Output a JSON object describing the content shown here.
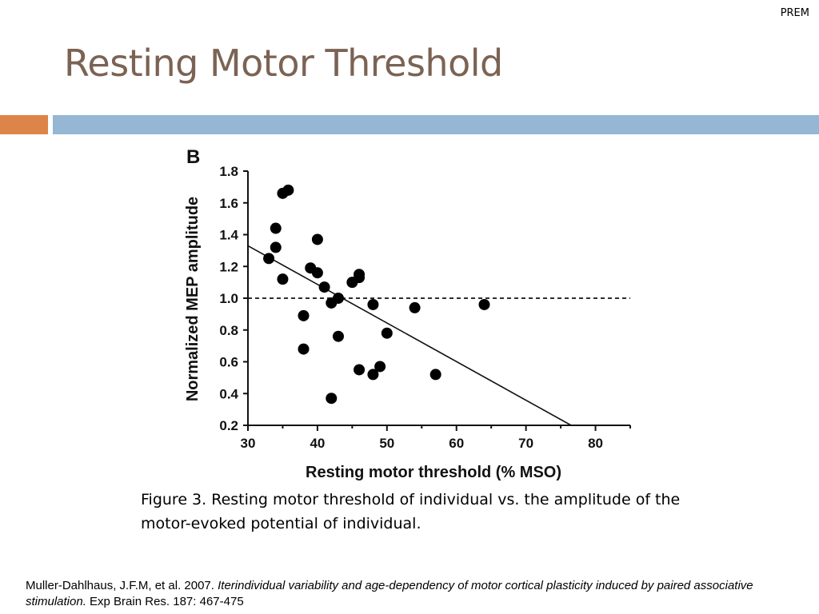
{
  "header": {
    "tag": "PREM",
    "title": "Resting Motor Threshold"
  },
  "colors": {
    "title": "#7b6354",
    "accent_orange": "#dd8449",
    "divider_blue": "#95b7d4",
    "points": "#000000"
  },
  "chart_data": {
    "type": "scatter",
    "panel_label": "B",
    "xlabel": "Resting motor threshold (% MSO)",
    "ylabel": "Normalized MEP amplitude",
    "xlim": [
      30,
      85
    ],
    "ylim": [
      0.2,
      1.8
    ],
    "x_ticks": [
      "30",
      "40",
      "50",
      "60",
      "70",
      "80"
    ],
    "y_ticks": [
      "0.2",
      "0.4",
      "0.6",
      "0.8",
      "1.0",
      "1.2",
      "1.4",
      "1.6",
      "1.8"
    ],
    "grid": false,
    "legend": "none",
    "reference_line": {
      "y": 1.0,
      "style": "dashed"
    },
    "trend_line": {
      "start": [
        30,
        1.33
      ],
      "end": [
        76.5,
        0.2
      ]
    },
    "points": [
      {
        "x": 35,
        "y": 1.66
      },
      {
        "x": 35.8,
        "y": 1.68
      },
      {
        "x": 34,
        "y": 1.44
      },
      {
        "x": 34,
        "y": 1.32
      },
      {
        "x": 33,
        "y": 1.25
      },
      {
        "x": 35,
        "y": 1.12
      },
      {
        "x": 40,
        "y": 1.37
      },
      {
        "x": 39,
        "y": 1.19
      },
      {
        "x": 40,
        "y": 1.16
      },
      {
        "x": 41,
        "y": 1.07
      },
      {
        "x": 45,
        "y": 1.1
      },
      {
        "x": 46,
        "y": 1.13
      },
      {
        "x": 46,
        "y": 1.15
      },
      {
        "x": 43,
        "y": 1.0
      },
      {
        "x": 42,
        "y": 0.97
      },
      {
        "x": 48,
        "y": 0.96
      },
      {
        "x": 54,
        "y": 0.94
      },
      {
        "x": 64,
        "y": 0.96
      },
      {
        "x": 38,
        "y": 0.89
      },
      {
        "x": 38,
        "y": 0.68
      },
      {
        "x": 43,
        "y": 0.76
      },
      {
        "x": 50,
        "y": 0.78
      },
      {
        "x": 46,
        "y": 0.55
      },
      {
        "x": 49,
        "y": 0.57
      },
      {
        "x": 48,
        "y": 0.52
      },
      {
        "x": 57,
        "y": 0.52
      },
      {
        "x": 42,
        "y": 0.37
      }
    ]
  },
  "caption": {
    "text": "Figure 3. Resting motor threshold of individual vs. the amplitude of the motor-evoked potential of individual."
  },
  "citation": {
    "authors": "Muller-Dahlhaus, J.F.M, et al. 2007. ",
    "title": "Iterindividual variability and age-dependency of motor cortical plasticity induced by paired associative stimulation.",
    "source": " Exp Brain Res. 187: 467-475"
  }
}
